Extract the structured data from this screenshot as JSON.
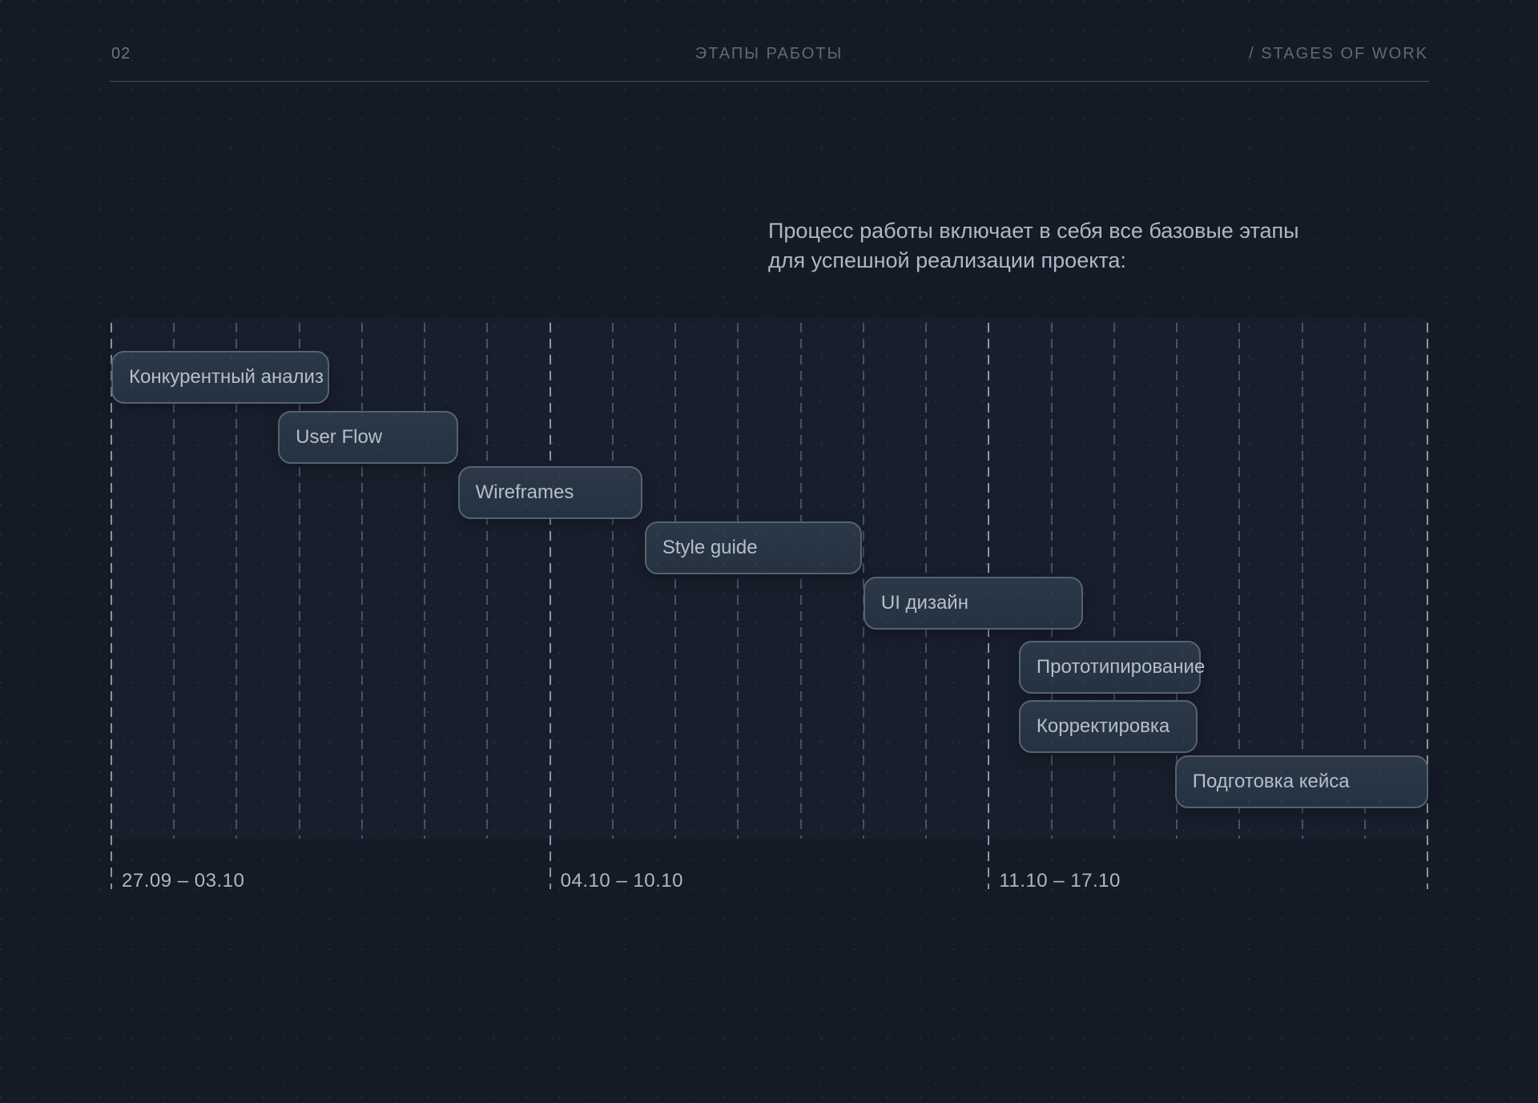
{
  "header": {
    "index": "02",
    "title_ru": "ЭТАПЫ РАБОТЫ",
    "title_en": "/ STAGES OF WORK"
  },
  "intro": {
    "line1": "Процесс работы включает в себя все базовые этапы",
    "line2": "для успешной реализации проекта:"
  },
  "chart_data": {
    "type": "gantt",
    "title": "ЭТАПЫ РАБОТЫ / STAGES OF WORK",
    "grid": "vertical dashed daily lines, emphasized weekly boundary lines",
    "legend_position": "none",
    "days_per_week": 7,
    "num_weeks": 3,
    "x_axis_day_range": [
      0,
      21
    ],
    "week_labels": [
      "27.09 – 03.10",
      "04.10 – 10.10",
      "11.10 – 17.10"
    ],
    "tasks": [
      {
        "label": "Конкурентный анализ",
        "row": 0,
        "start_day": 0,
        "duration_days": 3.48
      },
      {
        "label": "User Flow",
        "row": 1,
        "start_day": 2.66,
        "duration_days": 2.88
      },
      {
        "label": "Wireframes",
        "row": 2,
        "start_day": 5.53,
        "duration_days": 2.95
      },
      {
        "label": "Style guide",
        "row": 3,
        "start_day": 8.51,
        "duration_days": 3.46
      },
      {
        "label": "UI дизайн",
        "row": 4,
        "start_day": 12.0,
        "duration_days": 3.5
      },
      {
        "label": "Прототипирование",
        "row": 5,
        "start_day": 14.48,
        "duration_days": 2.9
      },
      {
        "label": "Корректировка",
        "row": 6,
        "start_day": 14.48,
        "duration_days": 2.85
      },
      {
        "label": "Подготовка кейса",
        "row": 7,
        "start_day": 16.97,
        "duration_days": 4.04
      }
    ],
    "colors": {
      "background": "#141b27",
      "bar_fill": "#273342",
      "bar_border": "#57626f",
      "bar_text": "#b5bfc9",
      "grid_daily": "rgba(140,155,172,0.42)",
      "grid_weekly": "rgba(185,198,212,0.72)",
      "header_text": "#5f6a77",
      "date_label_text": "#aeb7c2"
    }
  }
}
